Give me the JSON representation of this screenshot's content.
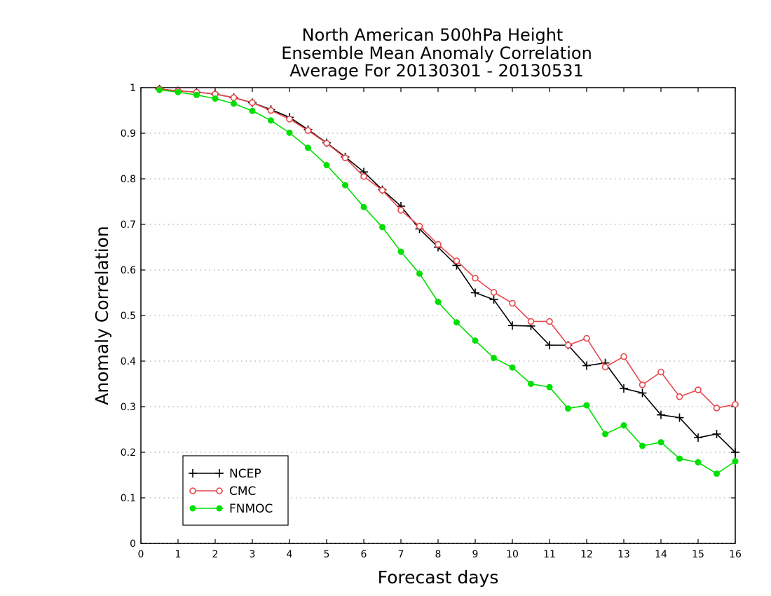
{
  "chart_data": {
    "type": "line",
    "title": [
      "North American 500hPa Height",
      "Ensemble Mean Anomaly Correlation",
      "Average For 20130301 - 20130531"
    ],
    "xlabel": "Forecast days",
    "ylabel": "Anomaly Correlation",
    "xlim": [
      0,
      16
    ],
    "ylim": [
      0,
      1
    ],
    "xticks": [
      0,
      1,
      2,
      3,
      4,
      5,
      6,
      7,
      8,
      9,
      10,
      11,
      12,
      13,
      14,
      15,
      16
    ],
    "yticks": [
      0,
      0.1,
      0.2,
      0.3,
      0.4,
      0.5,
      0.6,
      0.7,
      0.8,
      0.9,
      1
    ],
    "grid": true,
    "legend_position": "bottom-left",
    "x": [
      0.5,
      1,
      1.5,
      2,
      2.5,
      3,
      3.5,
      4,
      4.5,
      5,
      5.5,
      6,
      6.5,
      7,
      7.5,
      8,
      8.5,
      9,
      9.5,
      10,
      10.5,
      11,
      11.5,
      12,
      12.5,
      13,
      13.5,
      14,
      14.5,
      15,
      15.5,
      16
    ],
    "series": [
      {
        "name": "NCEP",
        "color": "#000000",
        "marker": "plus",
        "values": [
          0.997,
          0.993,
          0.99,
          0.986,
          0.978,
          0.967,
          0.952,
          0.935,
          0.908,
          0.879,
          0.848,
          0.815,
          0.776,
          0.74,
          0.69,
          0.65,
          0.61,
          0.55,
          0.535,
          0.478,
          0.477,
          0.435,
          0.435,
          0.39,
          0.396,
          0.34,
          0.33,
          0.282,
          0.276,
          0.232,
          0.24,
          0.2
        ]
      },
      {
        "name": "CMC",
        "color": "#e8484d",
        "marker": "open-circle",
        "values": [
          0.997,
          0.993,
          0.99,
          0.986,
          0.978,
          0.967,
          0.95,
          0.931,
          0.906,
          0.878,
          0.846,
          0.805,
          0.775,
          0.731,
          0.696,
          0.656,
          0.62,
          0.582,
          0.551,
          0.527,
          0.487,
          0.487,
          0.435,
          0.45,
          0.387,
          0.41,
          0.348,
          0.376,
          0.322,
          0.337,
          0.297,
          0.305
        ]
      },
      {
        "name": "FNMOC",
        "color": "#00e000",
        "marker": "filled-circle",
        "values": [
          0.995,
          0.99,
          0.984,
          0.976,
          0.965,
          0.949,
          0.928,
          0.901,
          0.868,
          0.83,
          0.786,
          0.738,
          0.694,
          0.64,
          0.592,
          0.53,
          0.485,
          0.445,
          0.407,
          0.386,
          0.35,
          0.343,
          0.296,
          0.303,
          0.24,
          0.259,
          0.214,
          0.222,
          0.186,
          0.178,
          0.153,
          0.18
        ]
      }
    ]
  }
}
